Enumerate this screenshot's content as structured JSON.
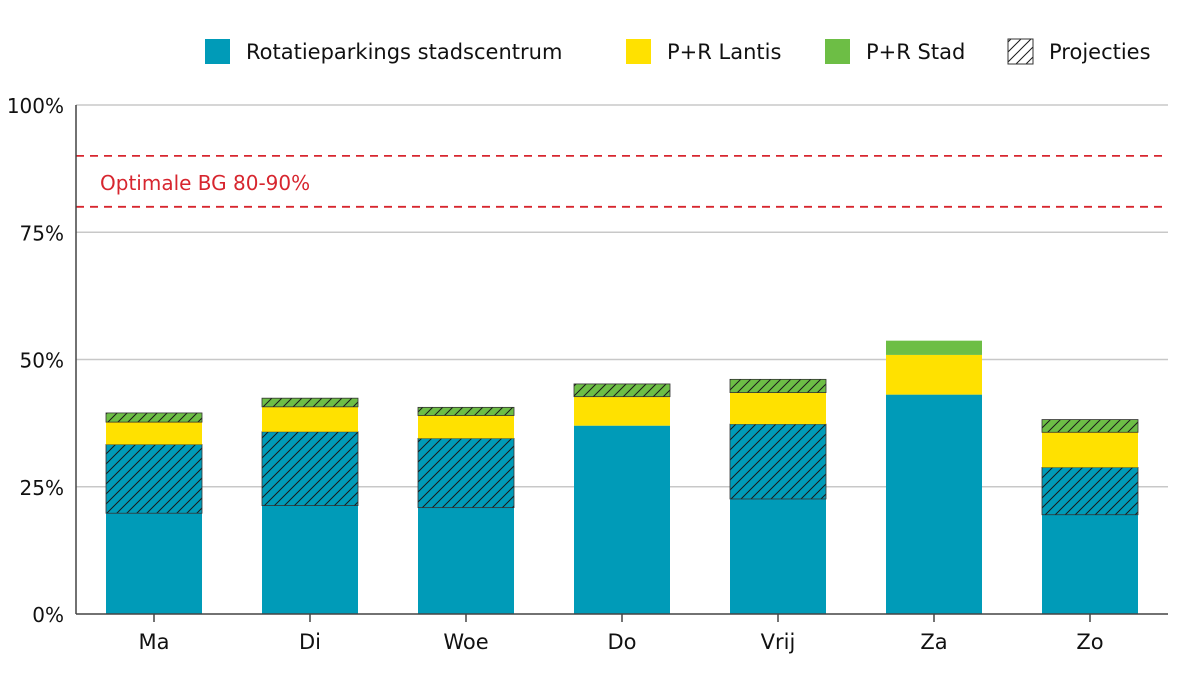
{
  "chart_data": {
    "type": "bar",
    "stacked": true,
    "categories": [
      "Ma",
      "Di",
      "Woe",
      "Do",
      "Vrij",
      "Za",
      "Zo"
    ],
    "series": [
      {
        "name": "Rotatieparkings stadscentrum",
        "color": "#009BB8",
        "actual": [
          19.8,
          21.3,
          20.9,
          37.0,
          22.6,
          43.1,
          19.5
        ],
        "projected": [
          13.5,
          14.5,
          13.6,
          0,
          14.7,
          0,
          9.3
        ]
      },
      {
        "name": "P+R Lantis",
        "color": "#FFE100",
        "actual": [
          4.4,
          4.9,
          4.5,
          5.7,
          6.2,
          7.8,
          6.9
        ],
        "projected": [
          0,
          0,
          0,
          0,
          0,
          0,
          0
        ]
      },
      {
        "name": "P+R Stad",
        "color": "#6DBE45",
        "actual": [
          0,
          0,
          0,
          0,
          0,
          2.8,
          0
        ],
        "projected": [
          1.8,
          1.7,
          1.6,
          2.5,
          2.6,
          0,
          2.5
        ]
      }
    ],
    "legend": {
      "position": "top-right",
      "projections_label": "Projecties"
    },
    "y_ticks": [
      "0%",
      "25%",
      "50%",
      "75%",
      "100%"
    ],
    "y_tick_values": [
      0,
      25,
      50,
      75,
      100
    ],
    "ylim": [
      0,
      100
    ],
    "grid": true,
    "reference_lines": [
      80,
      90
    ],
    "reference_color": "#D7262F",
    "annotation": "Optimale BG 80-90%"
  }
}
